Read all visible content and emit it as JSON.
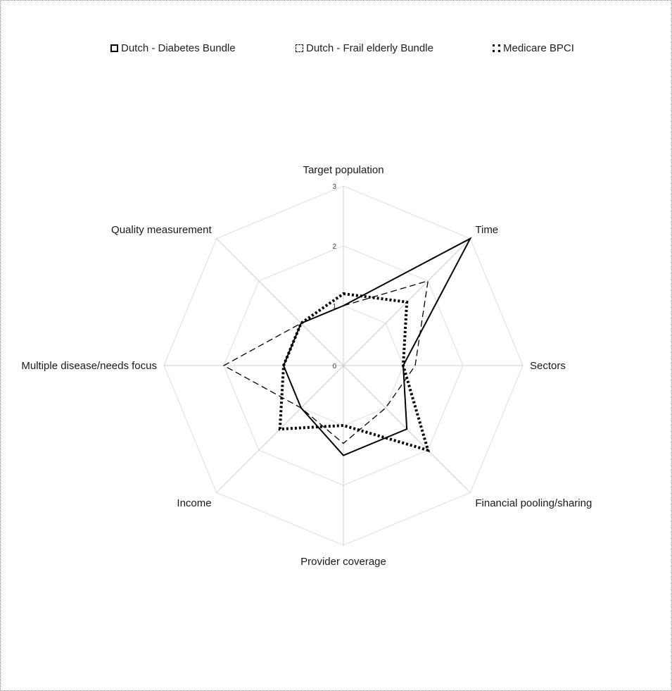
{
  "legend": {
    "items": [
      {
        "label": "Dutch - Diabetes Bundle"
      },
      {
        "label": "Dutch - Frail elderly Bundle"
      },
      {
        "label": "Medicare BPCI"
      }
    ]
  },
  "chart_data": {
    "type": "radar",
    "title": "",
    "axes": [
      "Target population",
      "Time",
      "Sectors",
      "Financial pooling/sharing",
      "Provider coverage",
      "Income",
      "Multiple disease/needs focus",
      "Quality measurement"
    ],
    "ticks": [
      0,
      1,
      2,
      3
    ],
    "rlim": [
      0,
      3
    ],
    "grid": true,
    "legend_position": "top",
    "series": [
      {
        "name": "Dutch - Diabetes Bundle",
        "style": "solid",
        "color": "#000000",
        "values": [
          1.0,
          3.0,
          1.0,
          1.5,
          1.5,
          1.0,
          1.0,
          1.0
        ]
      },
      {
        "name": "Dutch - Frail elderly Bundle",
        "style": "dashed",
        "color": "#000000",
        "values": [
          1.0,
          2.0,
          1.2,
          1.0,
          1.3,
          1.0,
          2.0,
          1.0
        ]
      },
      {
        "name": "Medicare BPCI",
        "style": "dotted",
        "color": "#000000",
        "values": [
          1.2,
          1.5,
          1.0,
          2.0,
          1.0,
          1.5,
          1.0,
          1.0
        ]
      }
    ]
  }
}
